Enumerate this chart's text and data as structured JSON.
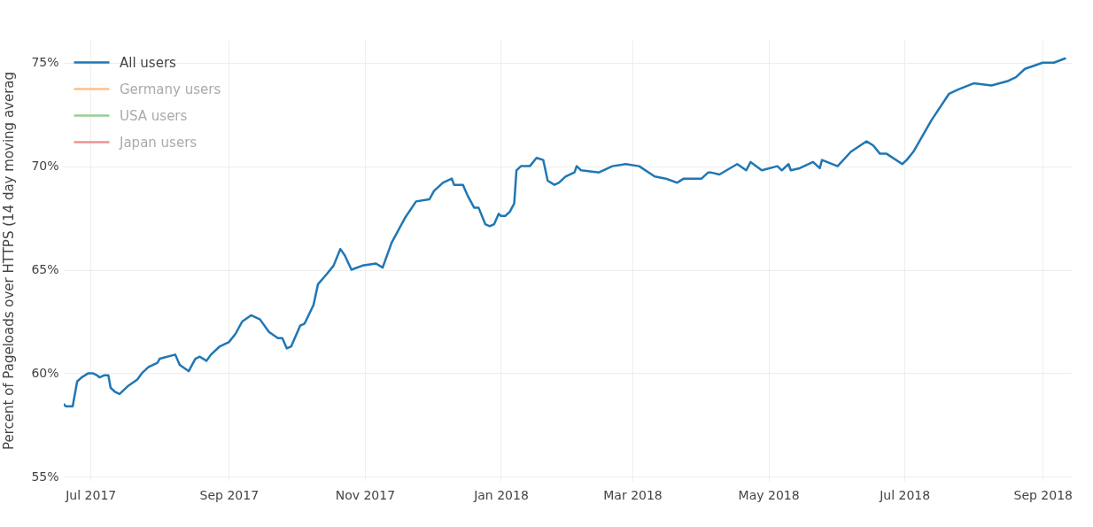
{
  "chart_data": {
    "type": "line",
    "ylabel": "Percent of Pageloads over HTTPS (14 day moving averag",
    "x": [
      "2017-06-19",
      "2017-06-20",
      "2017-06-23",
      "2017-06-25",
      "2017-06-27",
      "2017-06-30",
      "2017-07-02",
      "2017-07-04",
      "2017-07-05",
      "2017-07-07",
      "2017-07-09",
      "2017-07-10",
      "2017-07-12",
      "2017-07-14",
      "2017-07-18",
      "2017-07-22",
      "2017-07-24",
      "2017-07-27",
      "2017-07-31",
      "2017-08-01",
      "2017-08-08",
      "2017-08-10",
      "2017-08-14",
      "2017-08-17",
      "2017-08-19",
      "2017-08-22",
      "2017-08-24",
      "2017-08-28",
      "2017-09-01",
      "2017-09-04",
      "2017-09-07",
      "2017-09-11",
      "2017-09-15",
      "2017-09-19",
      "2017-09-23",
      "2017-09-25",
      "2017-09-27",
      "2017-09-29",
      "2017-10-03",
      "2017-10-05",
      "2017-10-09",
      "2017-10-11",
      "2017-10-15",
      "2017-10-18",
      "2017-10-21",
      "2017-10-23",
      "2017-10-26",
      "2017-10-31",
      "2017-11-06",
      "2017-11-09",
      "2017-11-13",
      "2017-11-16",
      "2017-11-19",
      "2017-11-24",
      "2017-11-30",
      "2017-12-02",
      "2017-12-06",
      "2017-12-10",
      "2017-12-11",
      "2017-12-15",
      "2017-12-17",
      "2017-12-20",
      "2017-12-22",
      "2017-12-25",
      "2017-12-27",
      "2017-12-29",
      "2017-12-31",
      "2018-01-01",
      "2018-01-03",
      "2018-01-05",
      "2018-01-07",
      "2018-01-08",
      "2018-01-10",
      "2018-01-14",
      "2018-01-17",
      "2018-01-20",
      "2018-01-22",
      "2018-01-25",
      "2018-01-27",
      "2018-01-30",
      "2018-02-03",
      "2018-02-04",
      "2018-02-06",
      "2018-02-14",
      "2018-02-20",
      "2018-02-26",
      "2018-03-04",
      "2018-03-11",
      "2018-03-16",
      "2018-03-21",
      "2018-03-24",
      "2018-04-01",
      "2018-04-04",
      "2018-04-05",
      "2018-04-09",
      "2018-04-17",
      "2018-04-21",
      "2018-04-23",
      "2018-04-28",
      "2018-05-05",
      "2018-05-07",
      "2018-05-10",
      "2018-05-11",
      "2018-05-15",
      "2018-05-21",
      "2018-05-24",
      "2018-05-25",
      "2018-06-01",
      "2018-06-07",
      "2018-06-14",
      "2018-06-17",
      "2018-06-20",
      "2018-06-23",
      "2018-06-30",
      "2018-07-02",
      "2018-07-05",
      "2018-07-13",
      "2018-07-21",
      "2018-07-25",
      "2018-08-01",
      "2018-08-09",
      "2018-08-16",
      "2018-08-20",
      "2018-08-24",
      "2018-09-01",
      "2018-09-06",
      "2018-09-11"
    ],
    "series": [
      {
        "name": "All users",
        "color": "#1f77b4",
        "values": [
          58.5,
          58.4,
          58.4,
          59.6,
          59.8,
          60.0,
          60.0,
          59.9,
          59.8,
          59.9,
          59.9,
          59.3,
          59.1,
          59.0,
          59.4,
          59.7,
          60.0,
          60.3,
          60.5,
          60.7,
          60.9,
          60.4,
          60.1,
          60.7,
          60.8,
          60.6,
          60.9,
          61.3,
          61.5,
          61.9,
          62.5,
          62.8,
          62.6,
          62.0,
          61.7,
          61.7,
          61.2,
          61.3,
          62.3,
          62.4,
          63.3,
          64.3,
          64.8,
          65.2,
          66.0,
          65.7,
          65.0,
          65.2,
          65.3,
          65.1,
          66.3,
          66.9,
          67.5,
          68.3,
          68.4,
          68.8,
          69.2,
          69.4,
          69.1,
          69.1,
          68.6,
          68.0,
          68.0,
          67.2,
          67.1,
          67.2,
          67.7,
          67.6,
          67.6,
          67.8,
          68.2,
          69.8,
          70.0,
          70.0,
          70.4,
          70.3,
          69.3,
          69.1,
          69.2,
          69.5,
          69.7,
          70.0,
          69.8,
          69.7,
          70.0,
          70.1,
          70.0,
          69.5,
          69.4,
          69.2,
          69.4,
          69.4,
          69.7,
          69.7,
          69.6,
          70.1,
          69.8,
          70.2,
          69.8,
          70.0,
          69.8,
          70.1,
          69.8,
          69.9,
          70.2,
          69.9,
          70.3,
          70.0,
          70.7,
          71.2,
          71.0,
          70.6,
          70.6,
          70.1,
          70.3,
          70.7,
          72.2,
          73.5,
          73.7,
          74.0,
          73.9,
          74.1,
          74.3,
          74.7,
          75.0,
          75.0,
          75.2
        ]
      },
      {
        "name": "Germany users",
        "color": "#ffbf87",
        "values": [
          null,
          null,
          null,
          null,
          null,
          null,
          null,
          null,
          null,
          null,
          null,
          null,
          null,
          null,
          null,
          null,
          null,
          null,
          null,
          null,
          null,
          null,
          null,
          null,
          null,
          null,
          null,
          null,
          null,
          null,
          null,
          null,
          null,
          null,
          null,
          null,
          null,
          null,
          null,
          null,
          null,
          null,
          null,
          null,
          null,
          null,
          null,
          null,
          null,
          null,
          null,
          null,
          null,
          null,
          null,
          null,
          null,
          null,
          null,
          null,
          null,
          null,
          null,
          null,
          null,
          null,
          null,
          null,
          null,
          null,
          null,
          null,
          null,
          null,
          null,
          null,
          null,
          null,
          null,
          null,
          null,
          null,
          null,
          null,
          null,
          null,
          null,
          null,
          null,
          null,
          null,
          null,
          null,
          null,
          null,
          null,
          null,
          null,
          null,
          null,
          null,
          null,
          null,
          null,
          null,
          null,
          null,
          null,
          null,
          null,
          null,
          null,
          null,
          null,
          null,
          null,
          null,
          null,
          null,
          null,
          null,
          null,
          null,
          null,
          null,
          null,
          null
        ]
      },
      {
        "name": "USA users",
        "color": "#95cf95",
        "values": [
          null,
          null,
          null,
          null,
          null,
          null,
          null,
          null,
          null,
          null,
          null,
          null,
          null,
          null,
          null,
          null,
          null,
          null,
          null,
          null,
          null,
          null,
          null,
          null,
          null,
          null,
          null,
          null,
          null,
          null,
          null,
          null,
          null,
          null,
          null,
          null,
          null,
          null,
          null,
          null,
          null,
          null,
          null,
          null,
          null,
          null,
          null,
          null,
          null,
          null,
          null,
          null,
          null,
          null,
          null,
          null,
          null,
          null,
          null,
          null,
          null,
          null,
          null,
          null,
          null,
          null,
          null,
          null,
          null,
          null,
          null,
          null,
          null,
          null,
          null,
          null,
          null,
          null,
          null,
          null,
          null,
          null,
          null,
          null,
          null,
          null,
          null,
          null,
          null,
          null,
          null,
          null,
          null,
          null,
          null,
          null,
          null,
          null,
          null,
          null,
          null,
          null,
          null,
          null,
          null,
          null,
          null,
          null,
          null,
          null,
          null,
          null,
          null,
          null,
          null,
          null,
          null,
          null,
          null,
          null,
          null,
          null,
          null,
          null,
          null,
          null,
          null
        ]
      },
      {
        "name": "Japan users",
        "color": "#eb9394",
        "values": [
          null,
          null,
          null,
          null,
          null,
          null,
          null,
          null,
          null,
          null,
          null,
          null,
          null,
          null,
          null,
          null,
          null,
          null,
          null,
          null,
          null,
          null,
          null,
          null,
          null,
          null,
          null,
          null,
          null,
          null,
          null,
          null,
          null,
          null,
          null,
          null,
          null,
          null,
          null,
          null,
          null,
          null,
          null,
          null,
          null,
          null,
          null,
          null,
          null,
          null,
          null,
          null,
          null,
          null,
          null,
          null,
          null,
          null,
          null,
          null,
          null,
          null,
          null,
          null,
          null,
          null,
          null,
          null,
          null,
          null,
          null,
          null,
          null,
          null,
          null,
          null,
          null,
          null,
          null,
          null,
          null,
          null,
          null,
          null,
          null,
          null,
          null,
          null,
          null,
          null,
          null,
          null,
          null,
          null,
          null,
          null,
          null,
          null,
          null,
          null,
          null,
          null,
          null,
          null,
          null,
          null,
          null,
          null,
          null,
          null,
          null,
          null,
          null,
          null,
          null,
          null,
          null,
          null,
          null,
          null,
          null,
          null,
          null,
          null,
          null,
          null,
          null
        ]
      }
    ],
    "xlim": [
      "2017-06-19",
      "2018-09-14"
    ],
    "xticks": [
      {
        "value": "2017-07-01",
        "label": "Jul 2017"
      },
      {
        "value": "2017-09-01",
        "label": "Sep 2017"
      },
      {
        "value": "2017-11-01",
        "label": "Nov 2017"
      },
      {
        "value": "2018-01-01",
        "label": "Jan 2018"
      },
      {
        "value": "2018-03-01",
        "label": "Mar 2018"
      },
      {
        "value": "2018-05-01",
        "label": "May 2018"
      },
      {
        "value": "2018-07-01",
        "label": "Jul 2018"
      },
      {
        "value": "2018-09-01",
        "label": "Sep 2018"
      }
    ],
    "ylim": [
      54.8,
      76.1
    ],
    "yticks": [
      {
        "value": 55,
        "label": "55%"
      },
      {
        "value": 60,
        "label": "60%"
      },
      {
        "value": 65,
        "label": "65%"
      },
      {
        "value": 70,
        "label": "70%"
      },
      {
        "value": 75,
        "label": "75%"
      }
    ],
    "grid": true,
    "legend": "top left",
    "marker": "none",
    "line_style": "solid"
  }
}
